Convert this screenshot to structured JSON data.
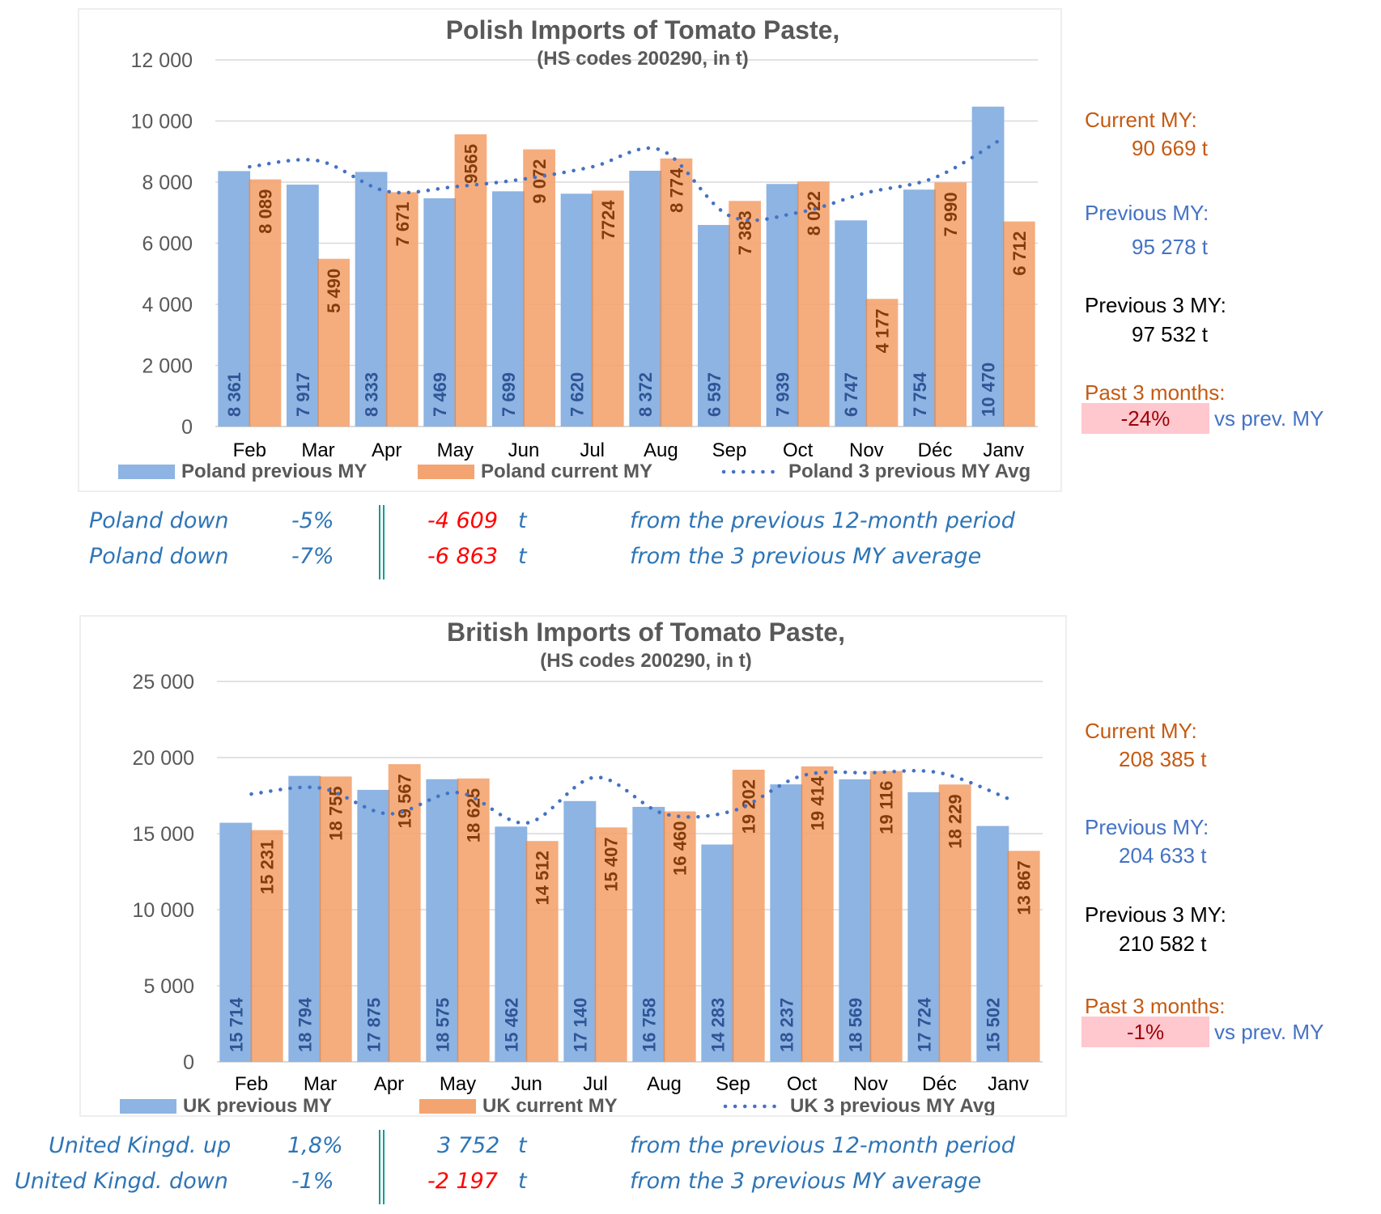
{
  "charts": {
    "poland": {
      "side": {
        "current_label": "Current MY:",
        "current_value": "90 669 t",
        "previous_label": "Previous MY:",
        "previous_value": "95 278 t",
        "prev3_label": "Previous 3 MY:",
        "prev3_value": "97 532 t",
        "past3_label": "Past 3 months:",
        "past3_value": "-24%",
        "past3_suffix": "vs prev. MY"
      },
      "summary": [
        {
          "label": "Poland down",
          "pct": "-5%",
          "delta": "-4 609",
          "unit": "t",
          "delta_negative": true,
          "desc": "from the previous 12-month period"
        },
        {
          "label": "Poland down",
          "pct": "-7%",
          "delta": "-6 863",
          "unit": "t",
          "delta_negative": true,
          "desc": "from the 3 previous MY average"
        }
      ]
    },
    "uk": {
      "side": {
        "current_label": "Current MY:",
        "current_value": "208 385 t",
        "previous_label": "Previous MY:",
        "previous_value": "204 633 t",
        "prev3_label": "Previous 3 MY:",
        "prev3_value": "210 582 t",
        "past3_label": "Past 3 months:",
        "past3_value": "-1%",
        "past3_suffix": "vs prev. MY"
      },
      "summary": [
        {
          "label": "United Kingd. up",
          "pct": "1,8%",
          "delta": "3 752",
          "unit": "t",
          "delta_negative": false,
          "desc": "from the previous 12-month period"
        },
        {
          "label": "United Kingd. down",
          "pct": "-1%",
          "delta": "-2 197",
          "unit": "t",
          "delta_negative": true,
          "desc": "from the 3 previous MY average"
        }
      ]
    }
  },
  "colors": {
    "previous": "#8db4e2",
    "current": "#f4a470",
    "avg": "#4472c4",
    "prev_label": "#2f5597",
    "cur_label": "#843c0c",
    "title": "#595959",
    "axis_text": "#595959",
    "grid": "#d9d9d9"
  },
  "chart_data": [
    {
      "type": "bar",
      "title": "Polish Imports of Tomato Paste,",
      "subtitle": "(HS codes 200290, in t)",
      "xlabel": "",
      "ylabel": "",
      "ylim": [
        0,
        12000
      ],
      "yticks": [
        0,
        2000,
        4000,
        6000,
        8000,
        10000,
        12000
      ],
      "ytick_labels": [
        "0",
        "2 000",
        "4 000",
        "6 000",
        "8 000",
        "10 000",
        "12 000"
      ],
      "grid": true,
      "legend_position": "bottom",
      "categories": [
        "Feb",
        "Mar",
        "Apr",
        "May",
        "Jun",
        "Jul",
        "Aug",
        "Sep",
        "Oct",
        "Nov",
        "Déc",
        "Janv"
      ],
      "series": [
        {
          "name": "Poland previous MY",
          "kind": "bar",
          "values": [
            8361,
            7917,
            8333,
            7469,
            7699,
            7620,
            8372,
            6597,
            7939,
            6747,
            7754,
            10470
          ],
          "labels": [
            "8 361",
            "7 917",
            "8 333",
            "7 469",
            "7 699",
            "7 620",
            "8 372",
            "6 597",
            "7 939",
            "6 747",
            "7 754",
            "10 470"
          ]
        },
        {
          "name": "Poland current MY",
          "kind": "bar",
          "values": [
            8089,
            5490,
            7671,
            9565,
            9072,
            7724,
            8774,
            7383,
            8022,
            4177,
            7990,
            6712
          ],
          "labels": [
            "8 089",
            "5 490",
            "7 671",
            "9565",
            "9 072",
            "7724",
            "8 774",
            "7 383",
            "8 022",
            "4 177",
            "7 990",
            "6 712"
          ]
        },
        {
          "name": "Poland 3 previous MY Avg",
          "kind": "dotted-line",
          "values": [
            8500,
            8700,
            7700,
            7850,
            8100,
            8500,
            9050,
            6900,
            7000,
            7650,
            8150,
            9450
          ]
        }
      ]
    },
    {
      "type": "bar",
      "title": "British Imports of Tomato Paste,",
      "subtitle": "(HS codes 200290, in t)",
      "xlabel": "",
      "ylabel": "",
      "ylim": [
        0,
        25000
      ],
      "yticks": [
        0,
        5000,
        10000,
        15000,
        20000,
        25000
      ],
      "ytick_labels": [
        "0",
        "5 000",
        "10 000",
        "15 000",
        "20 000",
        "25 000"
      ],
      "grid": true,
      "legend_position": "bottom",
      "categories": [
        "Feb",
        "Mar",
        "Apr",
        "May",
        "Jun",
        "Jul",
        "Aug",
        "Sep",
        "Oct",
        "Nov",
        "Déc",
        "Janv"
      ],
      "series": [
        {
          "name": "UK previous MY",
          "kind": "bar",
          "values": [
            15714,
            18794,
            17875,
            18575,
            15462,
            17140,
            16758,
            14283,
            18237,
            18569,
            17724,
            15502
          ],
          "labels": [
            "15 714",
            "18 794",
            "17 875",
            "18 575",
            "15 462",
            "17 140",
            "16 758",
            "14 283",
            "18 237",
            "18 569",
            "17 724",
            "15 502"
          ]
        },
        {
          "name": "UK current MY",
          "kind": "bar",
          "values": [
            15231,
            18755,
            19567,
            18625,
            14512,
            15407,
            16460,
            19202,
            19414,
            19116,
            18229,
            13867
          ],
          "labels": [
            "15 231",
            "18 755",
            "19 567",
            "18 625",
            "14 512",
            "15 407",
            "16 460",
            "19 202",
            "19 414",
            "19 116",
            "18 229",
            "13 867"
          ]
        },
        {
          "name": "UK 3 previous MY Avg",
          "kind": "dotted-line",
          "values": [
            17600,
            18000,
            16300,
            17700,
            15700,
            18700,
            16300,
            16500,
            18800,
            19000,
            19000,
            17300
          ]
        }
      ]
    }
  ]
}
